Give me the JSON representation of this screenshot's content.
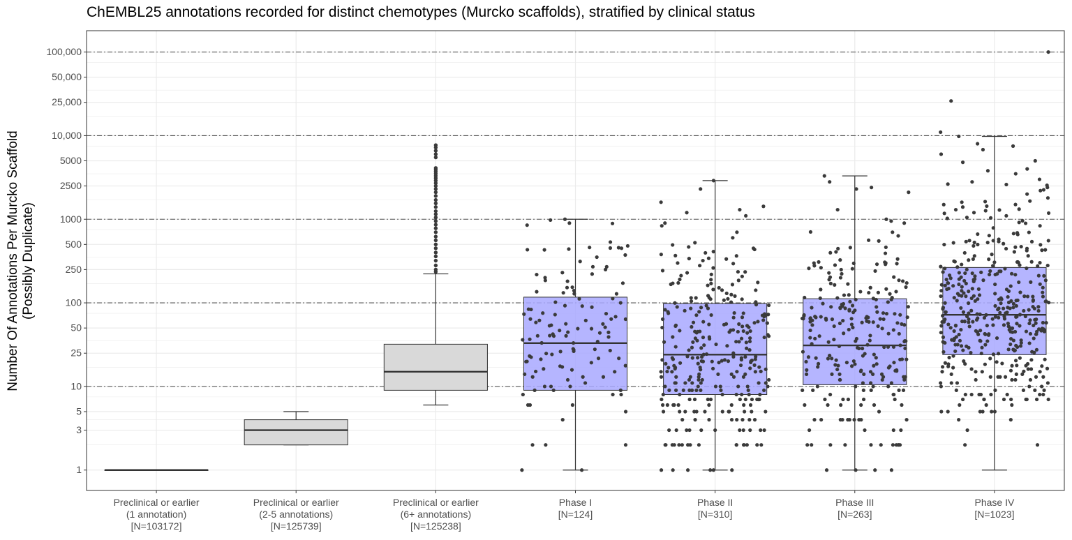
{
  "chart_data": {
    "type": "box",
    "title": "ChEMBL25 annotations recorded for distinct chemotypes (Murcko scaffolds), stratified by clinical status",
    "xlabel": "",
    "ylabel_line1": "Number Of Annotations Per Murcko Scaffold",
    "ylabel_line2": "(Possibly Duplicate)",
    "yscale": "log10",
    "ylim": [
      0.57,
      180000
    ],
    "yticks": [
      1,
      3,
      5,
      10,
      25,
      50,
      100,
      250,
      500,
      1000,
      2500,
      5000,
      10000,
      25000,
      50000,
      100000
    ],
    "ytick_labels": [
      "1",
      "3",
      "5",
      "10",
      "25",
      "50",
      "100",
      "250",
      "500",
      "1000",
      "2500",
      "5000",
      "10,000",
      "25,000",
      "50,000",
      "100,000"
    ],
    "reference_lines": [
      10,
      100,
      1000,
      10000,
      100000
    ],
    "grid": true,
    "categories": [
      {
        "line1": "Preclinical or earlier",
        "line2": "(1 annotation)",
        "line3": "[N=103172]"
      },
      {
        "line1": "Preclinical or earlier",
        "line2": "(2-5 annotations)",
        "line3": "[N=125739]"
      },
      {
        "line1": "Preclinical or earlier",
        "line2": "(6+ annotations)",
        "line3": "[N=125238]"
      },
      {
        "line1": "Phase I",
        "line2": "[N=124]",
        "line3": ""
      },
      {
        "line1": "Phase II",
        "line2": "[N=310]",
        "line3": ""
      },
      {
        "line1": "Phase III",
        "line2": "[N=263]",
        "line3": ""
      },
      {
        "line1": "Phase IV",
        "line2": "[N=1023]",
        "line3": ""
      }
    ],
    "boxes": [
      {
        "whisker_low": 1,
        "q1": 1,
        "median": 1,
        "q3": 1,
        "whisker_high": 1,
        "fill": "#d9d9d9"
      },
      {
        "whisker_low": 2,
        "q1": 2,
        "median": 3,
        "q3": 4,
        "whisker_high": 5,
        "fill": "#d9d9d9"
      },
      {
        "whisker_low": 6,
        "q1": 9,
        "median": 15,
        "q3": 32,
        "whisker_high": 222,
        "fill": "#d9d9d9"
      },
      {
        "whisker_low": 1,
        "q1": 9,
        "median": 33,
        "q3": 117,
        "whisker_high": 1000,
        "fill": "#a8a8ff"
      },
      {
        "whisker_low": 1,
        "q1": 8,
        "median": 24,
        "q3": 98,
        "whisker_high": 2900,
        "fill": "#a8a8ff"
      },
      {
        "whisker_low": 1,
        "q1": 10.5,
        "median": 31,
        "q3": 112,
        "whisker_high": 3300,
        "fill": "#a8a8ff"
      },
      {
        "whisker_low": 1,
        "q1": 24,
        "median": 72,
        "q3": 265,
        "whisker_high": 9800,
        "fill": "#a8a8ff"
      }
    ],
    "outliers_group3": [
      235,
      250,
      280,
      320,
      360,
      400,
      450,
      500,
      560,
      620,
      700,
      780,
      860,
      950,
      1050,
      1150,
      1250,
      1400,
      1550,
      1700,
      1900,
      2100,
      2300,
      2500,
      2700,
      2900,
      3100,
      3300,
      3500,
      3700,
      3900,
      4100,
      5500,
      6000,
      6600,
      7200,
      7700
    ],
    "jitter_points": {
      "phase1_high": [
        1000,
        900,
        850,
        450,
        440,
        460,
        480,
        270,
        250,
        230,
        200
      ],
      "phase2_high": [
        2300,
        2900,
        1600,
        1300,
        1200,
        1100,
        900,
        700,
        600,
        450
      ],
      "phase3_high": [
        2800,
        3300,
        2400,
        2300,
        2100,
        1300,
        1000,
        950,
        900,
        700,
        550
      ],
      "phase4_high": [
        100000,
        26000,
        11000,
        9800,
        8000,
        7500,
        6800,
        6000,
        5000,
        4800,
        4000,
        3800,
        3500,
        3000,
        2800,
        2600,
        2400,
        2200,
        2000,
        1800,
        1600,
        1500,
        1400,
        1300,
        1200,
        1100
      ]
    },
    "colors": {
      "box_grey": "#d9d9d9",
      "box_blue": "#a8a8ff",
      "point": "#3a3a3a",
      "point_inside_blue": "#8484e0",
      "grid": "#ebebeb",
      "refline": "#555555"
    }
  }
}
